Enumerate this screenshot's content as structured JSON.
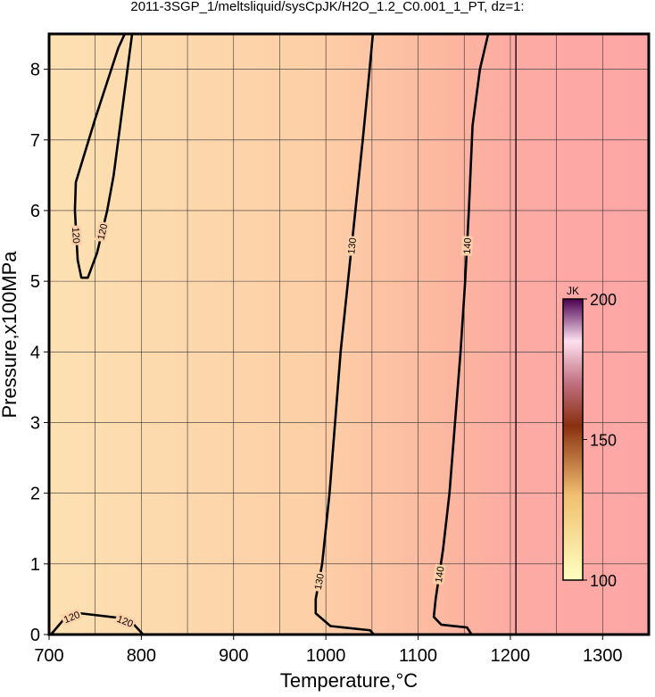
{
  "chart_data": {
    "type": "contour",
    "title": "2011-3SGP_1/meltsliquid/sysCpJK/H2O_1.2_C0.001_1_PT, dz=1:",
    "x_label": "Temperature,°C",
    "y_label": "Pressure,x100MPa",
    "xlim": [
      700,
      1350
    ],
    "ylim": [
      0,
      8.5
    ],
    "xticks": [
      700,
      800,
      900,
      1000,
      1100,
      1200,
      1300
    ],
    "yticks": [
      0,
      1,
      2,
      3,
      4,
      5,
      6,
      7,
      8
    ],
    "x_gridlines": [
      750,
      800,
      850,
      900,
      950,
      1000,
      1050,
      1100,
      1150,
      1200,
      1250,
      1300
    ],
    "grid": true,
    "vlines": [
      1206
    ],
    "contours": [
      {
        "level": 120,
        "x": [
          790,
          780,
          770,
          763,
          752,
          742,
          735,
          731,
          728,
          729,
          750,
          775,
          782
        ],
        "y": [
          8.5,
          7.5,
          6.5,
          6,
          5.4,
          5.05,
          5.05,
          5.3,
          6,
          6.4,
          7.3,
          8.3,
          8.5
        ]
      },
      {
        "level": 120,
        "x": [
          702,
          715,
          734,
          773,
          792,
          802
        ],
        "y": [
          0,
          0.2,
          0.3,
          0.24,
          0.14,
          0
        ]
      },
      {
        "level": 130,
        "x": [
          1051,
          1046,
          1040,
          1032,
          1024,
          1016,
          1010,
          1004,
          996,
          989,
          989,
          1005,
          1048,
          1052
        ],
        "y": [
          8.5,
          7.8,
          7,
          6,
          5,
          4,
          3,
          2,
          1,
          0.5,
          0.3,
          0.12,
          0.06,
          0
        ]
      },
      {
        "level": 140,
        "x": [
          1176,
          1167,
          1159,
          1155,
          1151,
          1146,
          1140,
          1134,
          1127,
          1119,
          1117,
          1125,
          1153,
          1158
        ],
        "y": [
          8.5,
          8,
          7.2,
          6,
          5,
          4,
          3,
          2,
          1.2,
          0.5,
          0.25,
          0.14,
          0.1,
          0
        ]
      }
    ],
    "colorbar": {
      "label": "JK",
      "lim": [
        100,
        200
      ],
      "ticks": [
        100,
        150,
        200
      ]
    }
  }
}
